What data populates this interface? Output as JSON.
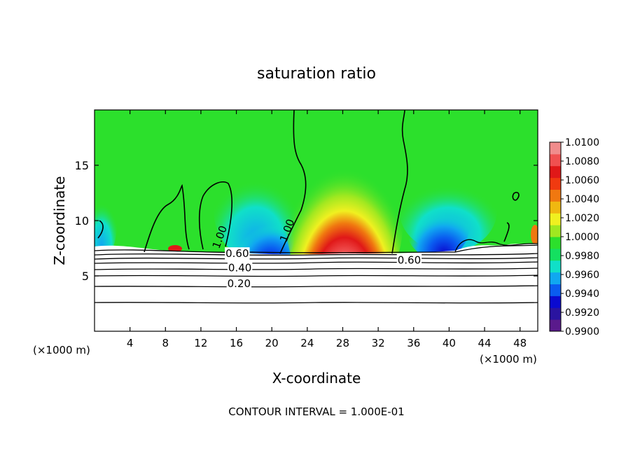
{
  "chart_data": {
    "type": "heatmap",
    "title": "saturation ratio",
    "xlabel": "X-coordinate",
    "ylabel": "Z-coordinate",
    "x_unit": "(×1000 m)",
    "z_unit": "(×1000 m)",
    "xlim": [
      0,
      50
    ],
    "ylim": [
      0,
      20
    ],
    "x_ticks": [
      4,
      8,
      12,
      16,
      20,
      24,
      28,
      32,
      36,
      40,
      44,
      48
    ],
    "y_ticks": [
      5,
      10,
      15
    ],
    "footer": "CONTOUR INTERVAL = 1.000E-01",
    "colorbar": {
      "min": 0.99,
      "max": 1.01,
      "ticks": [
        "1.0100",
        "1.0080",
        "1.0060",
        "1.0040",
        "1.0020",
        "1.0000",
        "0.9980",
        "0.9960",
        "0.9940",
        "0.9920",
        "0.9900"
      ],
      "colors": [
        "#5a1a8c",
        "#2a14a0",
        "#0a0ad0",
        "#0a5cf0",
        "#10a8f0",
        "#10e0c8",
        "#14e060",
        "#2ce02c",
        "#a0e820",
        "#f0f020",
        "#f0b810",
        "#f07810",
        "#f03a10",
        "#e01818",
        "#f05050",
        "#f08c8c"
      ]
    },
    "contour_labels": [
      {
        "text": "0.20",
        "x": 16.3,
        "y": 4.0
      },
      {
        "text": "0.40",
        "x": 16.4,
        "y": 5.4
      },
      {
        "text": "0.60",
        "x": 16.1,
        "y": 6.7
      },
      {
        "text": "0.60",
        "x": 35.5,
        "y": 6.1
      },
      {
        "text": "1.00",
        "x": 14.5,
        "y": 8.4
      },
      {
        "text": "1.00",
        "x": 22.1,
        "y": 9.0
      }
    ]
  }
}
